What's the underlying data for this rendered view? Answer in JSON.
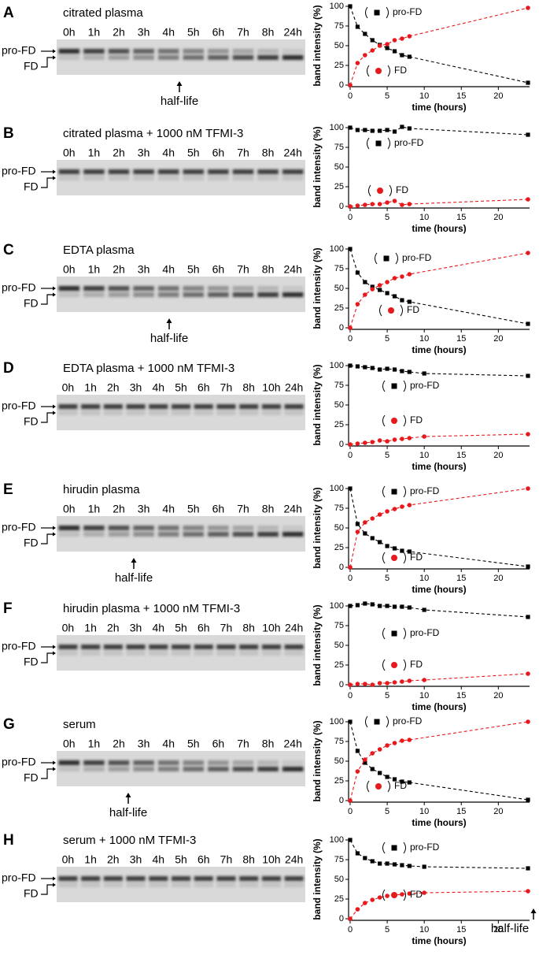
{
  "panels": [
    {
      "letter": "A",
      "title": "citrated plasma",
      "lanes": [
        "0h",
        "1h",
        "2h",
        "3h",
        "4h",
        "5h",
        "6h",
        "7h",
        "8h",
        "24h"
      ],
      "bands": [
        "pro-FD",
        "FD"
      ],
      "half_life": "half-life"
    },
    {
      "letter": "B",
      "title": "citrated plasma + 1000 nM TFMI-3",
      "lanes": [
        "0h",
        "1h",
        "2h",
        "3h",
        "4h",
        "5h",
        "6h",
        "7h",
        "8h",
        "24h"
      ],
      "bands": [
        "pro-FD",
        "FD"
      ]
    },
    {
      "letter": "C",
      "title": "EDTA plasma",
      "lanes": [
        "0h",
        "1h",
        "2h",
        "3h",
        "4h",
        "5h",
        "6h",
        "7h",
        "8h",
        "24h"
      ],
      "bands": [
        "pro-FD",
        "FD"
      ],
      "half_life": "half-life"
    },
    {
      "letter": "D",
      "title": "EDTA plasma + 1000 nM TFMI-3",
      "lanes": [
        "0h",
        "1h",
        "2h",
        "3h",
        "4h",
        "5h",
        "6h",
        "7h",
        "8h",
        "10h",
        "24h"
      ],
      "bands": [
        "pro-FD",
        "FD"
      ]
    },
    {
      "letter": "E",
      "title": "hirudin plasma",
      "lanes": [
        "0h",
        "1h",
        "2h",
        "3h",
        "4h",
        "5h",
        "6h",
        "7h",
        "8h",
        "24h"
      ],
      "bands": [
        "pro-FD",
        "FD"
      ],
      "half_life": "half-life"
    },
    {
      "letter": "F",
      "title": "hirudin plasma + 1000 nM TFMI-3",
      "lanes": [
        "0h",
        "1h",
        "2h",
        "3h",
        "4h",
        "5h",
        "6h",
        "7h",
        "8h",
        "10h",
        "24h"
      ],
      "bands": [
        "pro-FD",
        "FD"
      ]
    },
    {
      "letter": "G",
      "title": "serum",
      "lanes": [
        "0h",
        "1h",
        "2h",
        "3h",
        "4h",
        "5h",
        "6h",
        "7h",
        "8h",
        "24h"
      ],
      "bands": [
        "pro-FD",
        "FD"
      ],
      "half_life": "half-life"
    },
    {
      "letter": "H",
      "title": "serum + 1000 nM TFMI-3",
      "lanes": [
        "0h",
        "1h",
        "2h",
        "3h",
        "4h",
        "5h",
        "6h",
        "7h",
        "8h",
        "10h",
        "24h"
      ],
      "bands": [
        "pro-FD",
        "FD"
      ],
      "half_life": "half-life"
    }
  ],
  "chart_data": [
    {
      "type": "scatter",
      "xlabel": "time (hours)",
      "ylabel": "band intensity (%)",
      "xlim": [
        0,
        24
      ],
      "ylim": [
        0,
        100
      ],
      "xticks": [
        0,
        5,
        10,
        15,
        20
      ],
      "yticks": [
        0,
        25,
        50,
        75,
        100
      ],
      "x": [
        0,
        1,
        2,
        3,
        4,
        5,
        6,
        7,
        8,
        24
      ],
      "series": [
        {
          "name": "pro-FD",
          "color": "#000000",
          "marker": "square",
          "values": [
            100,
            74,
            65,
            57,
            51,
            47,
            43,
            38,
            36,
            3
          ]
        },
        {
          "name": "FD",
          "color": "#e8191c",
          "marker": "circle",
          "values": [
            0,
            28,
            38,
            44,
            50,
            52,
            57,
            59,
            62,
            98
          ]
        }
      ]
    },
    {
      "type": "scatter",
      "xlabel": "time (hours)",
      "ylabel": "band intensity (%)",
      "xlim": [
        0,
        24
      ],
      "ylim": [
        0,
        100
      ],
      "xticks": [
        0,
        5,
        10,
        15,
        20
      ],
      "yticks": [
        0,
        25,
        50,
        75,
        100
      ],
      "x": [
        0,
        1,
        2,
        3,
        4,
        5,
        6,
        7,
        8,
        24
      ],
      "series": [
        {
          "name": "pro-FD",
          "color": "#000000",
          "marker": "square",
          "values": [
            100,
            97,
            97,
            96,
            96,
            97,
            95,
            101,
            99,
            91
          ]
        },
        {
          "name": "FD",
          "color": "#e8191c",
          "marker": "circle",
          "values": [
            0,
            1,
            2,
            3,
            3,
            5,
            7,
            2,
            3,
            9
          ]
        }
      ]
    },
    {
      "type": "scatter",
      "xlabel": "time (hours)",
      "ylabel": "band intensity (%)",
      "xlim": [
        0,
        24
      ],
      "ylim": [
        0,
        100
      ],
      "xticks": [
        0,
        5,
        10,
        15,
        20
      ],
      "yticks": [
        0,
        25,
        50,
        75,
        100
      ],
      "x": [
        0,
        1,
        2,
        3,
        4,
        5,
        6,
        7,
        8,
        24
      ],
      "series": [
        {
          "name": "pro-FD",
          "color": "#000000",
          "marker": "square",
          "values": [
            100,
            70,
            58,
            52,
            48,
            44,
            40,
            35,
            33,
            5
          ]
        },
        {
          "name": "FD",
          "color": "#e8191c",
          "marker": "circle",
          "values": [
            0,
            30,
            42,
            49,
            54,
            58,
            63,
            65,
            68,
            95
          ]
        }
      ]
    },
    {
      "type": "scatter",
      "xlabel": "time (hours)",
      "ylabel": "band intensity (%)",
      "xlim": [
        0,
        24
      ],
      "ylim": [
        0,
        100
      ],
      "xticks": [
        0,
        5,
        10,
        15,
        20
      ],
      "yticks": [
        0,
        25,
        50,
        75,
        100
      ],
      "x": [
        0,
        1,
        2,
        3,
        4,
        5,
        6,
        7,
        8,
        10,
        24
      ],
      "series": [
        {
          "name": "pro-FD",
          "color": "#000000",
          "marker": "square",
          "values": [
            100,
            99,
            98,
            97,
            95,
            96,
            95,
            93,
            92,
            90,
            87
          ]
        },
        {
          "name": "FD",
          "color": "#e8191c",
          "marker": "circle",
          "values": [
            0,
            1,
            2,
            3,
            5,
            4,
            6,
            7,
            8,
            10,
            13
          ]
        }
      ]
    },
    {
      "type": "scatter",
      "xlabel": "time (hours)",
      "ylabel": "band intensity (%)",
      "xlim": [
        0,
        24
      ],
      "ylim": [
        0,
        100
      ],
      "xticks": [
        0,
        5,
        10,
        15,
        20
      ],
      "yticks": [
        0,
        25,
        50,
        75,
        100
      ],
      "x": [
        0,
        1,
        2,
        3,
        4,
        5,
        6,
        7,
        8,
        24
      ],
      "series": [
        {
          "name": "pro-FD",
          "color": "#000000",
          "marker": "square",
          "values": [
            100,
            55,
            43,
            37,
            32,
            27,
            24,
            21,
            20,
            1
          ]
        },
        {
          "name": "FD",
          "color": "#e8191c",
          "marker": "circle",
          "values": [
            0,
            45,
            57,
            62,
            67,
            71,
            74,
            77,
            79,
            100
          ]
        }
      ]
    },
    {
      "type": "scatter",
      "xlabel": "time (hours)",
      "ylabel": "band intensity (%)",
      "xlim": [
        0,
        24
      ],
      "ylim": [
        0,
        100
      ],
      "xticks": [
        0,
        5,
        10,
        15,
        20
      ],
      "yticks": [
        0,
        25,
        50,
        75,
        100
      ],
      "x": [
        0,
        1,
        2,
        3,
        4,
        5,
        6,
        7,
        8,
        10,
        24
      ],
      "series": [
        {
          "name": "pro-FD",
          "color": "#000000",
          "marker": "square",
          "values": [
            100,
            101,
            103,
            102,
            100,
            100,
            99,
            99,
            98,
            95,
            86
          ]
        },
        {
          "name": "FD",
          "color": "#e8191c",
          "marker": "circle",
          "values": [
            0,
            1,
            1,
            0,
            2,
            2,
            3,
            4,
            5,
            6,
            14
          ]
        }
      ]
    },
    {
      "type": "scatter",
      "xlabel": "time (hours)",
      "ylabel": "band intensity (%)",
      "xlim": [
        0,
        24
      ],
      "ylim": [
        0,
        100
      ],
      "xticks": [
        0,
        5,
        10,
        15,
        20
      ],
      "yticks": [
        0,
        25,
        50,
        75,
        100
      ],
      "x": [
        0,
        1,
        2,
        3,
        4,
        5,
        6,
        7,
        8,
        24
      ],
      "series": [
        {
          "name": "pro-FD",
          "color": "#000000",
          "marker": "square",
          "values": [
            100,
            63,
            48,
            40,
            35,
            30,
            27,
            24,
            23,
            1
          ]
        },
        {
          "name": "FD",
          "color": "#e8191c",
          "marker": "circle",
          "values": [
            0,
            37,
            52,
            60,
            65,
            70,
            73,
            76,
            77,
            100
          ]
        }
      ]
    },
    {
      "type": "scatter",
      "xlabel": "time (hours)",
      "ylabel": "band intensity (%)",
      "xlim": [
        0,
        24
      ],
      "ylim": [
        0,
        100
      ],
      "xticks": [
        0,
        5,
        10,
        15,
        20
      ],
      "yticks": [
        0,
        25,
        50,
        75,
        100
      ],
      "x": [
        0,
        1,
        2,
        3,
        4,
        5,
        6,
        7,
        8,
        10,
        24
      ],
      "series": [
        {
          "name": "pro-FD",
          "color": "#000000",
          "marker": "square",
          "values": [
            100,
            83,
            77,
            73,
            70,
            70,
            69,
            68,
            67,
            66,
            64
          ]
        },
        {
          "name": "FD",
          "color": "#e8191c",
          "marker": "circle",
          "values": [
            0,
            12,
            20,
            24,
            27,
            29,
            30,
            31,
            32,
            33,
            35
          ]
        }
      ]
    }
  ]
}
